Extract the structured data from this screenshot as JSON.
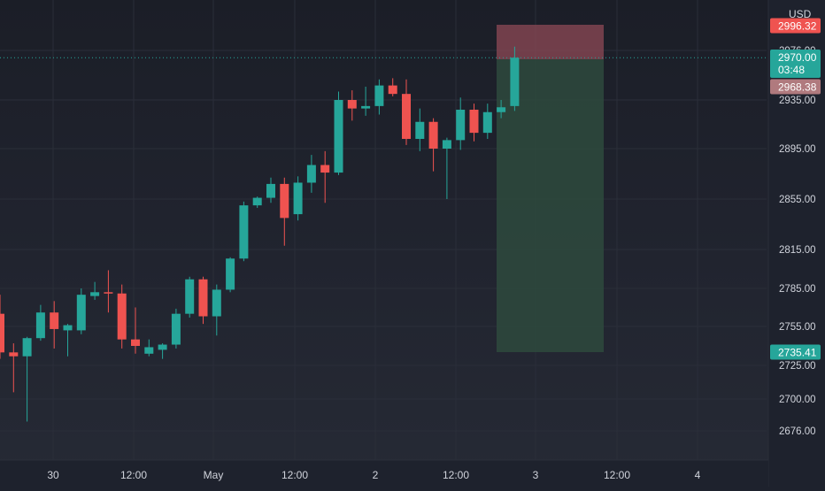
{
  "chart_data": {
    "type": "candlestick",
    "currency": "USD",
    "y_axis_ticks": [
      2976.0,
      2935.0,
      2895.0,
      2855.0,
      2815.0,
      2785.0,
      2755.0,
      2725.0,
      2700.0,
      2676.0
    ],
    "y_axis_tick_labels": [
      "2976.00",
      "2935.00",
      "2895.00",
      "2855.00",
      "2815.00",
      "2785.00",
      "2755.00",
      "2725.00",
      "2700.00",
      "2676.00"
    ],
    "x_axis_labels": [
      "30",
      "12:00",
      "May",
      "12:00",
      "2",
      "12:00",
      "3",
      "12:00",
      "4"
    ],
    "candles": [
      {
        "open": 2765,
        "high": 2780,
        "low": 2730,
        "close": 2735
      },
      {
        "open": 2735,
        "high": 2742,
        "low": 2705,
        "close": 2732
      },
      {
        "open": 2732,
        "high": 2747,
        "low": 2683,
        "close": 2746
      },
      {
        "open": 2746,
        "high": 2772,
        "low": 2744,
        "close": 2766
      },
      {
        "open": 2766,
        "high": 2775,
        "low": 2738,
        "close": 2753
      },
      {
        "open": 2752,
        "high": 2757,
        "low": 2732,
        "close": 2756
      },
      {
        "open": 2752,
        "high": 2785,
        "low": 2749,
        "close": 2780
      },
      {
        "open": 2779,
        "high": 2790,
        "low": 2776,
        "close": 2782
      },
      {
        "open": 2782,
        "high": 2799,
        "low": 2766,
        "close": 2781
      },
      {
        "open": 2781,
        "high": 2788,
        "low": 2738,
        "close": 2745
      },
      {
        "open": 2745,
        "high": 2770,
        "low": 2734,
        "close": 2740
      },
      {
        "open": 2734,
        "high": 2745,
        "low": 2732,
        "close": 2739
      },
      {
        "open": 2737,
        "high": 2742,
        "low": 2730,
        "close": 2741
      },
      {
        "open": 2741,
        "high": 2769,
        "low": 2738,
        "close": 2765
      },
      {
        "open": 2765,
        "high": 2794,
        "low": 2762,
        "close": 2792
      },
      {
        "open": 2792,
        "high": 2794,
        "low": 2757,
        "close": 2763
      },
      {
        "open": 2763,
        "high": 2788,
        "low": 2748,
        "close": 2784
      },
      {
        "open": 2784,
        "high": 2809,
        "low": 2782,
        "close": 2808
      },
      {
        "open": 2808,
        "high": 2853,
        "low": 2806,
        "close": 2850
      },
      {
        "open": 2850,
        "high": 2857,
        "low": 2848,
        "close": 2856
      },
      {
        "open": 2856,
        "high": 2872,
        "low": 2852,
        "close": 2867
      },
      {
        "open": 2867,
        "high": 2872,
        "low": 2818,
        "close": 2840
      },
      {
        "open": 2843,
        "high": 2873,
        "low": 2838,
        "close": 2868
      },
      {
        "open": 2868,
        "high": 2890,
        "low": 2860,
        "close": 2882
      },
      {
        "open": 2882,
        "high": 2893,
        "low": 2852,
        "close": 2876
      },
      {
        "open": 2876,
        "high": 2942,
        "low": 2874,
        "close": 2935
      },
      {
        "open": 2935,
        "high": 2943,
        "low": 2918,
        "close": 2928
      },
      {
        "open": 2928,
        "high": 2946,
        "low": 2922,
        "close": 2930
      },
      {
        "open": 2930,
        "high": 2952,
        "low": 2923,
        "close": 2947
      },
      {
        "open": 2947,
        "high": 2953,
        "low": 2938,
        "close": 2940
      },
      {
        "open": 2940,
        "high": 2952,
        "low": 2898,
        "close": 2903
      },
      {
        "open": 2903,
        "high": 2928,
        "low": 2893,
        "close": 2917
      },
      {
        "open": 2917,
        "high": 2920,
        "low": 2877,
        "close": 2895
      },
      {
        "open": 2895,
        "high": 2904,
        "low": 2855,
        "close": 2902
      },
      {
        "open": 2902,
        "high": 2937,
        "low": 2894,
        "close": 2927
      },
      {
        "open": 2927,
        "high": 2932,
        "low": 2901,
        "close": 2908
      },
      {
        "open": 2908,
        "high": 2932,
        "low": 2903,
        "close": 2925
      },
      {
        "open": 2925,
        "high": 2935,
        "low": 2920,
        "close": 2929
      },
      {
        "open": 2930,
        "high": 2979,
        "low": 2926,
        "close": 2970
      }
    ],
    "last_price": "2970.00",
    "countdown": "03:48",
    "stop_loss_price": "2996.32",
    "entry_price": "2968.38",
    "take_profit_price": "2735.41",
    "colors": {
      "up": "#26a69a",
      "down": "#ef5350",
      "background": "#1e222d",
      "grid": "#2a2e39",
      "axis_text": "#d1d4dc",
      "risk_zone": "#8d4a55",
      "reward_zone": "#2e4a3d",
      "price_line": "#26a69a"
    },
    "grid": true
  }
}
